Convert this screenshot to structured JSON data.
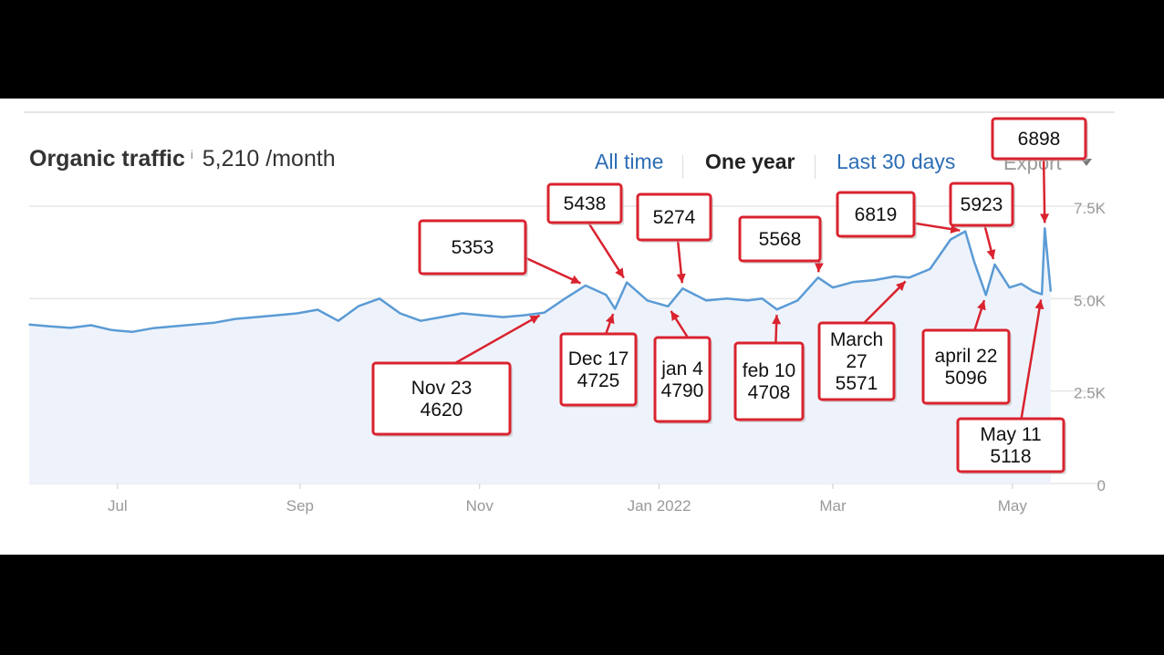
{
  "header": {
    "title": "Organic traffic",
    "info": "i",
    "traffic_value": "5,210 /month"
  },
  "range_tabs": [
    {
      "label": "All time",
      "active": false
    },
    {
      "label": "One year",
      "active": true
    },
    {
      "label": "Last 30 days",
      "active": false
    }
  ],
  "export_label": "Export",
  "colors": {
    "line": "#5b9bd5",
    "area": "#eef3fb",
    "callout_border": "#d9232f",
    "grid": "#e6e6e6",
    "link": "#2c6db5"
  },
  "chart_data": {
    "type": "area",
    "title": "Organic traffic",
    "xlabel": "",
    "ylabel": "",
    "ylim": [
      0,
      7500
    ],
    "y_ticks": [
      {
        "label": "0",
        "value": 0
      },
      {
        "label": "2.5K",
        "value": 2500
      },
      {
        "label": "5.0K",
        "value": 5000
      },
      {
        "label": "7.5K",
        "value": 7500
      }
    ],
    "x_start": "2021-06-01",
    "x_end": "2022-05-15",
    "x_ticks": [
      {
        "label": "Jul",
        "date": "2021-07-01"
      },
      {
        "label": "Sep",
        "date": "2021-09-01"
      },
      {
        "label": "Nov",
        "date": "2021-11-01"
      },
      {
        "label": "Jan 2022",
        "date": "2022-01-01"
      },
      {
        "label": "Mar",
        "date": "2022-03-01"
      },
      {
        "label": "May",
        "date": "2022-05-01"
      }
    ],
    "grid": true,
    "series": [
      {
        "points": [
          [
            "2021-06-01",
            4300
          ],
          [
            "2021-06-08",
            4250
          ],
          [
            "2021-06-15",
            4210
          ],
          [
            "2021-06-22",
            4280
          ],
          [
            "2021-06-29",
            4150
          ],
          [
            "2021-07-06",
            4100
          ],
          [
            "2021-07-13",
            4200
          ],
          [
            "2021-07-20",
            4250
          ],
          [
            "2021-07-27",
            4300
          ],
          [
            "2021-08-03",
            4350
          ],
          [
            "2021-08-10",
            4450
          ],
          [
            "2021-08-17",
            4500
          ],
          [
            "2021-08-24",
            4550
          ],
          [
            "2021-08-31",
            4600
          ],
          [
            "2021-09-07",
            4700
          ],
          [
            "2021-09-14",
            4400
          ],
          [
            "2021-09-21",
            4800
          ],
          [
            "2021-09-28",
            5000
          ],
          [
            "2021-10-05",
            4600
          ],
          [
            "2021-10-12",
            4400
          ],
          [
            "2021-10-19",
            4500
          ],
          [
            "2021-10-26",
            4600
          ],
          [
            "2021-11-02",
            4550
          ],
          [
            "2021-11-09",
            4500
          ],
          [
            "2021-11-16",
            4550
          ],
          [
            "2021-11-23",
            4620
          ],
          [
            "2021-11-30",
            5000
          ],
          [
            "2021-12-07",
            5353
          ],
          [
            "2021-12-14",
            5100
          ],
          [
            "2021-12-17",
            4725
          ],
          [
            "2021-12-21",
            5438
          ],
          [
            "2021-12-28",
            4950
          ],
          [
            "2022-01-04",
            4790
          ],
          [
            "2022-01-09",
            5274
          ],
          [
            "2022-01-17",
            4950
          ],
          [
            "2022-01-24",
            5000
          ],
          [
            "2022-01-31",
            4950
          ],
          [
            "2022-02-05",
            5000
          ],
          [
            "2022-02-10",
            4708
          ],
          [
            "2022-02-17",
            4950
          ],
          [
            "2022-02-24",
            5568
          ],
          [
            "2022-03-01",
            5300
          ],
          [
            "2022-03-08",
            5450
          ],
          [
            "2022-03-15",
            5500
          ],
          [
            "2022-03-22",
            5600
          ],
          [
            "2022-03-27",
            5571
          ],
          [
            "2022-04-03",
            5800
          ],
          [
            "2022-04-10",
            6600
          ],
          [
            "2022-04-15",
            6819
          ],
          [
            "2022-04-18",
            6000
          ],
          [
            "2022-04-22",
            5096
          ],
          [
            "2022-04-25",
            5923
          ],
          [
            "2022-04-30",
            5300
          ],
          [
            "2022-05-04",
            5400
          ],
          [
            "2022-05-08",
            5200
          ],
          [
            "2022-05-11",
            5118
          ],
          [
            "2022-05-12",
            6898
          ],
          [
            "2022-05-14",
            5200
          ]
        ]
      }
    ],
    "annotations": [
      {
        "lines": [
          "5353"
        ],
        "date": "2021-12-07",
        "value": 5353
      },
      {
        "lines": [
          "5438"
        ],
        "date": "2021-12-21",
        "value": 5438
      },
      {
        "lines": [
          "5274"
        ],
        "date": "2022-01-09",
        "value": 5274
      },
      {
        "lines": [
          "5568"
        ],
        "date": "2022-02-24",
        "value": 5568
      },
      {
        "lines": [
          "6819"
        ],
        "date": "2022-04-15",
        "value": 6819
      },
      {
        "lines": [
          "5923"
        ],
        "date": "2022-04-25",
        "value": 5923
      },
      {
        "lines": [
          "6898"
        ],
        "date": "2022-05-12",
        "value": 6898
      },
      {
        "lines": [
          "Nov 23",
          "4620"
        ],
        "date": "2021-11-23",
        "value": 4620
      },
      {
        "lines": [
          "Dec 17",
          "4725"
        ],
        "date": "2021-12-17",
        "value": 4725
      },
      {
        "lines": [
          "jan 4",
          "4790"
        ],
        "date": "2022-01-04",
        "value": 4790
      },
      {
        "lines": [
          "feb 10",
          "4708"
        ],
        "date": "2022-02-10",
        "value": 4708
      },
      {
        "lines": [
          "March",
          "27",
          "5571"
        ],
        "date": "2022-03-27",
        "value": 5571
      },
      {
        "lines": [
          "april 22",
          "5096"
        ],
        "date": "2022-04-22",
        "value": 5096
      },
      {
        "lines": [
          "May 11",
          "5118"
        ],
        "date": "2022-05-11",
        "value": 5118
      }
    ]
  }
}
